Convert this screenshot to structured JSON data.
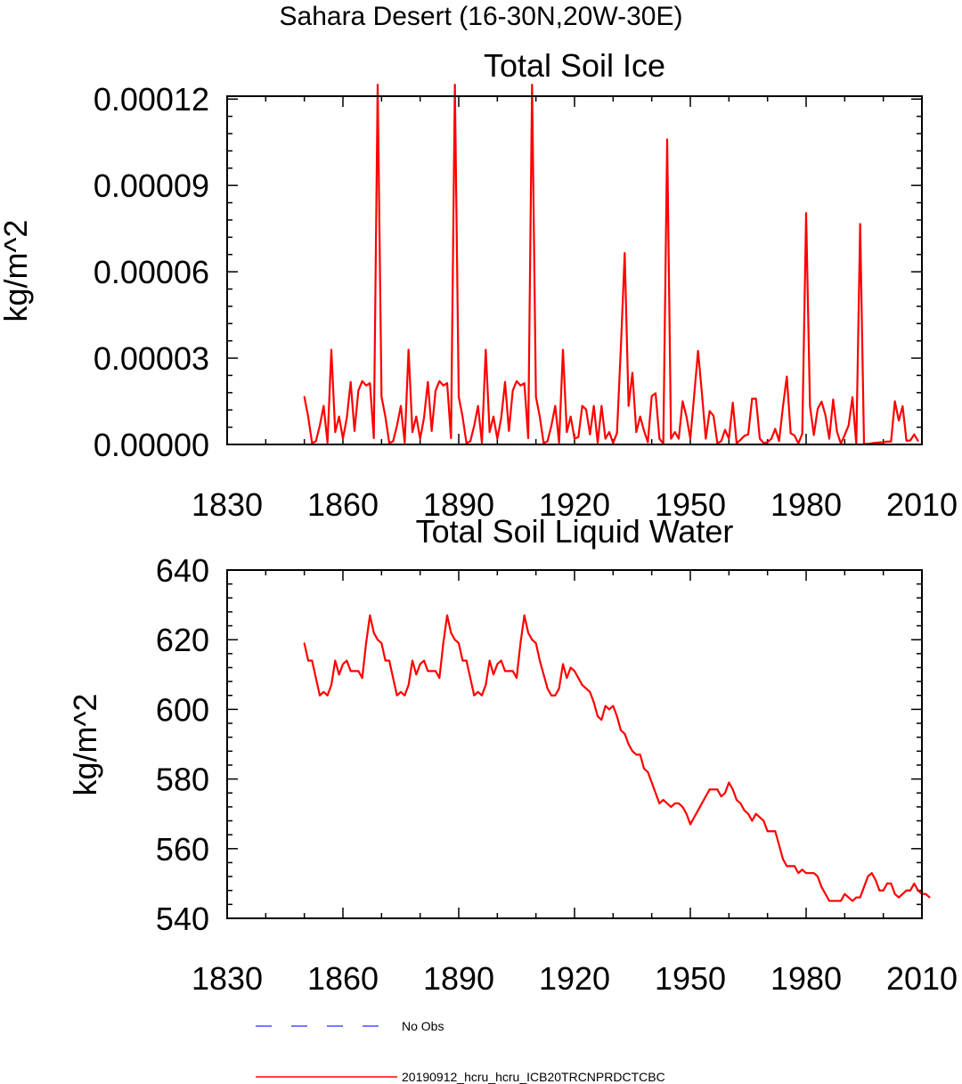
{
  "figure_title": "Sahara Desert (16-30N,20W-30E)",
  "colors": {
    "model": "#ff0000",
    "obs": "#4d4dff",
    "axes": "#000000"
  },
  "legend": [
    {
      "label": "No Obs",
      "style": "dashed",
      "color": "#4d4dff"
    },
    {
      "label": "20190912_hcru_hcru_ICB20TRCNPRDCTCBC",
      "style": "solid",
      "color": "#ff0000"
    }
  ],
  "chart_data": [
    {
      "type": "line",
      "title": "Total Soil Ice",
      "ylabel": "kg/m^2",
      "xlabel": "",
      "xlim": [
        1830,
        2010
      ],
      "ylim": [
        0,
        0.000121
      ],
      "xticks": [
        1830,
        1860,
        1890,
        1920,
        1950,
        1980,
        2010
      ],
      "yticks": [
        0,
        3e-05,
        6e-05,
        9e-05,
        0.00012
      ],
      "ytick_labels": [
        "0.00000",
        "0.00003",
        "0.00006",
        "0.00009",
        "0.00012"
      ],
      "grid": false,
      "series": [
        {
          "name": "20190912_hcru_hcru_ICB20TRCNPRDCTCBC",
          "x_start": 1850,
          "values": [
            1.66e-05,
            9.6e-06,
            5e-07,
            1.1e-06,
            6.5e-06,
            1.34e-05,
            6e-07,
            3.29e-05,
            4.3e-06,
            9.7e-06,
            2e-06,
            9.2e-06,
            2.17e-05,
            4.7e-06,
            1.87e-05,
            2.2e-05,
            2.05e-05,
            2.13e-05,
            2.2e-06,
            0.000125,
            1.66e-05,
            9.6e-06,
            5e-07,
            1.1e-06,
            6.5e-06,
            1.34e-05,
            6e-07,
            3.29e-05,
            4.3e-06,
            9.7e-06,
            2e-06,
            9.2e-06,
            2.17e-05,
            4.7e-06,
            1.87e-05,
            2.2e-05,
            2.05e-05,
            2.13e-05,
            2.2e-06,
            0.000125,
            1.66e-05,
            9.6e-06,
            5e-07,
            1.1e-06,
            6.5e-06,
            1.34e-05,
            6e-07,
            3.29e-05,
            4.3e-06,
            9.7e-06,
            2e-06,
            9.2e-06,
            2.17e-05,
            4.7e-06,
            1.87e-05,
            2.2e-05,
            2.05e-05,
            2.13e-05,
            2.2e-06,
            0.000125,
            1.66e-05,
            9.6e-06,
            5e-07,
            1.1e-06,
            6.5e-06,
            1.34e-05,
            6e-07,
            3.29e-05,
            4.3e-06,
            9.7e-06,
            2e-06,
            2.6e-06,
            1.34e-05,
            1.22e-05,
            3.5e-06,
            1.34e-05,
            6e-07,
            1.34e-05,
            2e-06,
            4.3e-06,
            5e-07,
            4e-06,
            3.35e-05,
            6.65e-05,
            1.34e-05,
            2.49e-05,
            4.3e-06,
            9.7e-06,
            4.8e-06,
            8e-07,
            1.68e-05,
            1.78e-05,
            2e-06,
            3e-07,
            0.000106,
            2e-06,
            4.3e-06,
            2e-06,
            1.5e-05,
            9.7e-06,
            2e-06,
            1.71e-05,
            3.25e-05,
            1.78e-05,
            2e-06,
            1.16e-05,
            1e-05,
            5e-07,
            1.1e-06,
            5.1e-06,
            2e-06,
            1.45e-05,
            4e-07,
            1.6e-06,
            3e-06,
            3.5e-06,
            1.59e-05,
            1.59e-05,
            2e-06,
            5e-07,
            8e-07,
            2e-06,
            5.4e-06,
            1.2e-06,
            1.32e-05,
            2.36e-05,
            3.9e-06,
            3.1e-06,
            4e-07,
            3.7e-06,
            8.04e-05,
            1.34e-05,
            3.3e-06,
            1.24e-05,
            1.49e-05,
            1.02e-05,
            2e-06,
            1.56e-05,
            4.4e-06,
            3e-07,
            3.3e-06,
            6.6e-06,
            1.64e-05,
            1e-07,
            7.66e-05,
            2e-07,
            2e-07,
            4e-07,
            6e-07,
            7e-07,
            8e-07,
            1e-06,
            1e-06,
            1.5e-05,
            8.3e-06,
            1.33e-05,
            1.3e-06,
            1.4e-06,
            3.5e-06,
            1.2e-06
          ]
        }
      ]
    },
    {
      "type": "line",
      "title": "Total Soil Liquid Water",
      "ylabel": "kg/m^2",
      "xlabel": "",
      "xlim": [
        1830,
        2010
      ],
      "ylim": [
        540,
        640
      ],
      "xticks": [
        1830,
        1860,
        1890,
        1920,
        1950,
        1980,
        2010
      ],
      "yticks": [
        540,
        560,
        580,
        600,
        620,
        640
      ],
      "ytick_labels": [
        "540",
        "560",
        "580",
        "600",
        "620",
        "640"
      ],
      "grid": false,
      "series": [
        {
          "name": "20190912_hcru_hcru_ICB20TRCNPRDCTCBC",
          "x_start": 1850,
          "values": [
            619,
            614,
            614,
            609,
            604,
            605,
            604,
            607,
            614,
            610,
            613,
            614,
            611,
            611,
            611,
            609,
            619,
            627,
            622,
            620,
            619,
            614,
            614,
            609,
            604,
            605,
            604,
            607,
            614,
            610,
            613,
            614,
            611,
            611,
            611,
            609,
            619,
            627,
            622,
            620,
            619,
            614,
            614,
            609,
            604,
            605,
            604,
            607,
            614,
            610,
            613,
            614,
            611,
            611,
            611,
            609,
            619,
            627,
            622,
            620,
            619,
            614,
            610,
            606,
            604,
            604,
            606,
            613,
            609,
            612,
            611,
            609,
            607,
            606,
            605,
            602,
            598,
            597,
            601,
            600,
            601,
            598,
            594,
            593,
            590,
            588,
            587,
            587,
            583,
            582,
            579,
            576,
            573,
            574,
            573,
            572,
            573,
            573,
            572,
            570,
            567,
            569,
            571,
            573,
            575,
            577,
            577,
            577,
            575,
            576,
            579,
            577,
            574,
            573,
            571,
            570,
            568,
            570,
            569,
            568,
            565,
            565,
            565,
            561,
            557,
            555,
            555,
            555,
            553,
            554,
            553,
            553,
            553,
            552,
            549,
            547,
            545,
            545,
            545,
            545,
            547,
            546,
            545,
            546,
            546,
            549,
            552,
            553,
            551,
            548,
            548,
            550,
            550,
            547,
            546,
            547,
            548,
            548,
            550,
            548,
            547,
            547,
            546
          ]
        }
      ]
    }
  ]
}
